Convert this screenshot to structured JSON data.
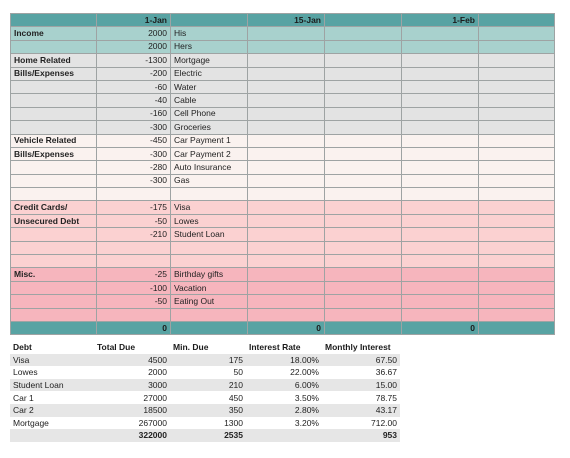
{
  "budget": {
    "header": [
      "",
      "1-Jan",
      "",
      "15-Jan",
      "",
      "1-Feb",
      ""
    ],
    "rows": [
      {
        "style": "teal",
        "label": "Income",
        "amount": "2000",
        "desc": "His"
      },
      {
        "style": "teal",
        "label": "",
        "amount": "2000",
        "desc": "Hers"
      },
      {
        "style": "gray",
        "label": "Home Related",
        "amount": "-1300",
        "desc": "Mortgage"
      },
      {
        "style": "gray",
        "label": "Bills/Expenses",
        "amount": "-200",
        "desc": "Electric"
      },
      {
        "style": "gray",
        "label": "",
        "amount": "-60",
        "desc": "Water"
      },
      {
        "style": "gray",
        "label": "",
        "amount": "-40",
        "desc": "Cable"
      },
      {
        "style": "gray",
        "label": "",
        "amount": "-160",
        "desc": "Cell Phone"
      },
      {
        "style": "gray",
        "label": "",
        "amount": "-300",
        "desc": "Groceries"
      },
      {
        "style": "cream",
        "label": "Vehicle Related",
        "amount": "-450",
        "desc": "Car Payment 1"
      },
      {
        "style": "cream",
        "label": "Bills/Expenses",
        "amount": "-300",
        "desc": "Car Payment 2"
      },
      {
        "style": "cream",
        "label": "",
        "amount": "-280",
        "desc": "Auto Insurance"
      },
      {
        "style": "cream",
        "label": "",
        "amount": "-300",
        "desc": "Gas"
      },
      {
        "style": "cream",
        "label": "",
        "amount": "",
        "desc": ""
      },
      {
        "style": "pink",
        "label": "Credit Cards/",
        "amount": "-175",
        "desc": "Visa"
      },
      {
        "style": "pink",
        "label": "Unsecured Debt",
        "amount": "-50",
        "desc": "Lowes"
      },
      {
        "style": "pink",
        "label": "",
        "amount": "-210",
        "desc": "Student Loan"
      },
      {
        "style": "pink",
        "label": "",
        "amount": "",
        "desc": ""
      },
      {
        "style": "pink",
        "label": "",
        "amount": "",
        "desc": ""
      },
      {
        "style": "rose",
        "label": "Misc.",
        "amount": "-25",
        "desc": "Birthday gifts"
      },
      {
        "style": "rose",
        "label": "",
        "amount": "-100",
        "desc": "Vacation"
      },
      {
        "style": "rose",
        "label": "",
        "amount": "-50",
        "desc": "Eating Out"
      },
      {
        "style": "rose",
        "label": "",
        "amount": "",
        "desc": ""
      }
    ],
    "totals": [
      "",
      "0",
      "",
      "0",
      "",
      "0",
      ""
    ]
  },
  "debt_table": {
    "headers": [
      "Debt",
      "Total Due",
      "Min. Due",
      "Interest Rate",
      "Monthly Interest"
    ],
    "rows": [
      [
        "Visa",
        "4500",
        "175",
        "18.00%",
        "67.50"
      ],
      [
        "Lowes",
        "2000",
        "50",
        "22.00%",
        "36.67"
      ],
      [
        "Student Loan",
        "3000",
        "210",
        "6.00%",
        "15.00"
      ],
      [
        "Car 1",
        "27000",
        "450",
        "3.50%",
        "78.75"
      ],
      [
        "Car 2",
        "18500",
        "350",
        "2.80%",
        "43.17"
      ],
      [
        "Mortgage",
        "267000",
        "1300",
        "3.20%",
        "712.00"
      ]
    ],
    "totals": [
      "",
      "322000",
      "2535",
      "",
      "953"
    ]
  },
  "colors": {
    "header_teal": "#58a3a3",
    "income_teal": "#a8d1cd",
    "home_gray": "#e3e3e3",
    "vehicle_cream": "#faf2ef",
    "credit_pink": "#fbd1d1",
    "misc_rose": "#f6b5bd"
  }
}
